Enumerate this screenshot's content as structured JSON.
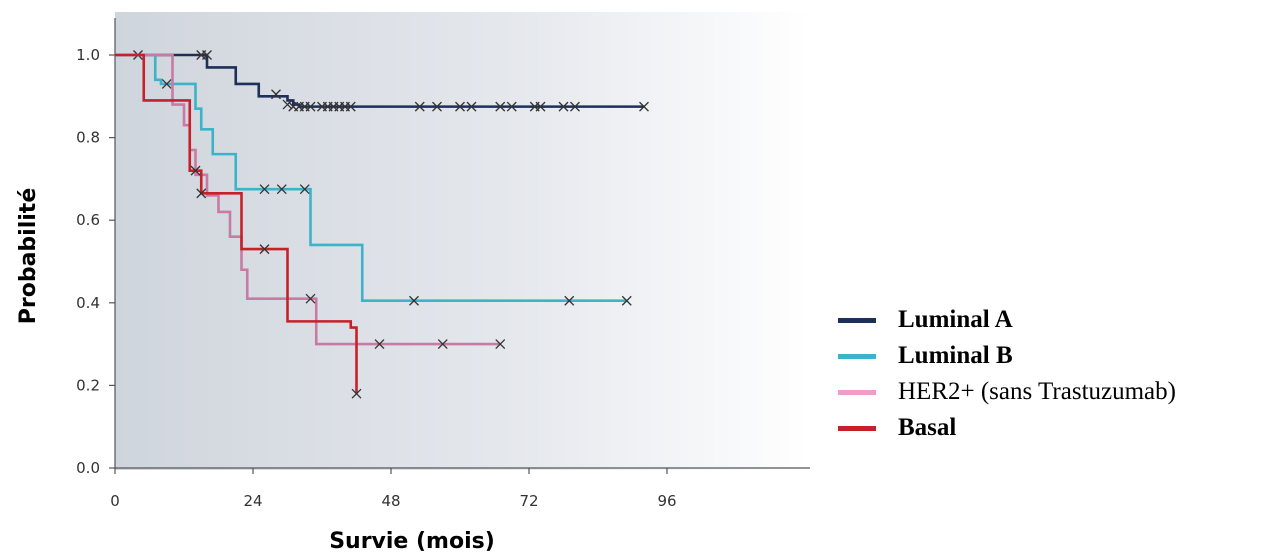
{
  "chart_data": {
    "type": "line",
    "title": "",
    "xlabel": "Survie (mois)",
    "ylabel": "Probabilité",
    "xlim": [
      0,
      108
    ],
    "ylim": [
      0,
      1.05
    ],
    "x_ticks": [
      0,
      24,
      48,
      72,
      96
    ],
    "y_ticks": [
      0.0,
      0.2,
      0.4,
      0.6,
      0.8,
      1.0
    ],
    "x_tick_labels": [
      "0",
      "24",
      "48",
      "72",
      "96"
    ],
    "y_tick_labels": [
      "0.0",
      "0.2",
      "0.4",
      "0.6",
      "0.8",
      "1.0"
    ],
    "step": "post",
    "legend_position": "right",
    "series": [
      {
        "name": "Luminal A",
        "color": "#1f2f5c",
        "legend_bold": true,
        "x": [
          0,
          16,
          21,
          25,
          30,
          31,
          32
        ],
        "y": [
          1.0,
          0.97,
          0.93,
          0.9,
          0.89,
          0.88,
          0.875
        ],
        "end_x": 92,
        "censored": [
          {
            "x": 4,
            "y": 1.0
          },
          {
            "x": 15,
            "y": 1.0
          },
          {
            "x": 16,
            "y": 1.0
          },
          {
            "x": 28,
            "y": 0.905
          },
          {
            "x": 30,
            "y": 0.88
          },
          {
            "x": 31,
            "y": 0.875
          },
          {
            "x": 32,
            "y": 0.875
          },
          {
            "x": 33,
            "y": 0.875
          },
          {
            "x": 34,
            "y": 0.875
          },
          {
            "x": 36,
            "y": 0.875
          },
          {
            "x": 37,
            "y": 0.875
          },
          {
            "x": 38,
            "y": 0.875
          },
          {
            "x": 39,
            "y": 0.875
          },
          {
            "x": 40,
            "y": 0.875
          },
          {
            "x": 41,
            "y": 0.875
          },
          {
            "x": 53,
            "y": 0.875
          },
          {
            "x": 56,
            "y": 0.875
          },
          {
            "x": 60,
            "y": 0.875
          },
          {
            "x": 62,
            "y": 0.875
          },
          {
            "x": 67,
            "y": 0.875
          },
          {
            "x": 69,
            "y": 0.875
          },
          {
            "x": 73,
            "y": 0.875
          },
          {
            "x": 74,
            "y": 0.875
          },
          {
            "x": 78,
            "y": 0.875
          },
          {
            "x": 80,
            "y": 0.875
          },
          {
            "x": 92,
            "y": 0.875
          }
        ]
      },
      {
        "name": "Luminal B",
        "color": "#3bb3c8",
        "legend_bold": true,
        "x": [
          0,
          7,
          8,
          14,
          15,
          17,
          21,
          34,
          43
        ],
        "y": [
          1.0,
          0.94,
          0.93,
          0.87,
          0.82,
          0.76,
          0.675,
          0.54,
          0.405
        ],
        "end_x": 89,
        "censored": [
          {
            "x": 9,
            "y": 0.93
          },
          {
            "x": 26,
            "y": 0.675
          },
          {
            "x": 29,
            "y": 0.675
          },
          {
            "x": 33,
            "y": 0.675
          },
          {
            "x": 52,
            "y": 0.405
          },
          {
            "x": 79,
            "y": 0.405
          },
          {
            "x": 89,
            "y": 0.405
          }
        ]
      },
      {
        "name": "HER2+ (sans Trastuzumab)",
        "color": "#c97aa4",
        "legend_color": "#f29bc8",
        "legend_bold": false,
        "x": [
          0,
          10,
          12,
          13,
          14,
          16,
          18,
          20,
          22,
          23,
          35
        ],
        "y": [
          1.0,
          0.88,
          0.83,
          0.77,
          0.71,
          0.66,
          0.62,
          0.56,
          0.48,
          0.41,
          0.3
        ],
        "end_x": 67,
        "censored": [
          {
            "x": 34,
            "y": 0.41
          },
          {
            "x": 46,
            "y": 0.3
          },
          {
            "x": 57,
            "y": 0.3
          },
          {
            "x": 67,
            "y": 0.3
          }
        ]
      },
      {
        "name": "Basal",
        "color": "#c8202a",
        "legend_bold": true,
        "x": [
          0,
          5,
          13,
          15,
          22,
          30,
          41,
          42
        ],
        "y": [
          1.0,
          0.89,
          0.72,
          0.665,
          0.53,
          0.355,
          0.34,
          0.18
        ],
        "end_x": 42,
        "censored": [
          {
            "x": 14,
            "y": 0.72
          },
          {
            "x": 15,
            "y": 0.665
          },
          {
            "x": 26,
            "y": 0.53
          },
          {
            "x": 42,
            "y": 0.18
          }
        ]
      }
    ]
  }
}
